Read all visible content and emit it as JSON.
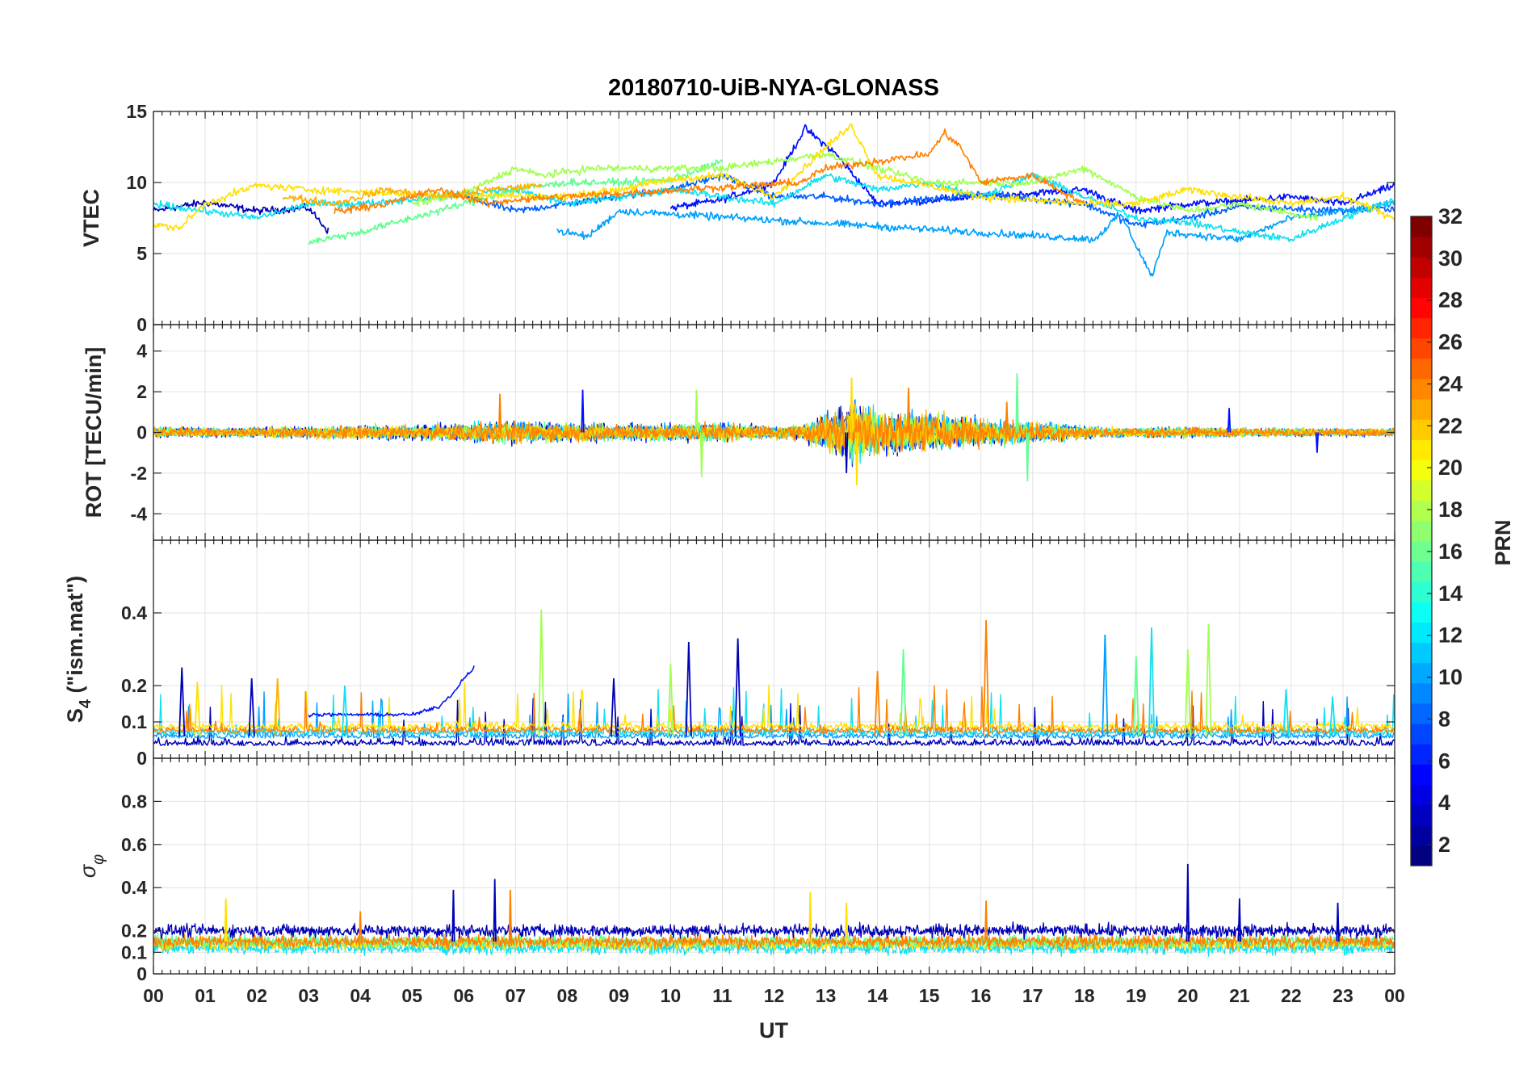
{
  "chart_data": {
    "type": "line",
    "title": "20180710-UiB-NYA-GLONASS",
    "xlabel": "UT",
    "x_tick_labels": [
      "00",
      "01",
      "02",
      "03",
      "04",
      "05",
      "06",
      "07",
      "08",
      "09",
      "10",
      "11",
      "12",
      "13",
      "14",
      "15",
      "16",
      "17",
      "18",
      "19",
      "20",
      "21",
      "22",
      "23",
      "00"
    ],
    "x_range_hours": [
      0,
      24
    ],
    "grid": true,
    "colorbar": {
      "label": "PRN",
      "colormap": "jet",
      "range": [
        1,
        32
      ],
      "ticks": [
        2,
        4,
        6,
        8,
        10,
        12,
        14,
        16,
        18,
        20,
        22,
        24,
        26,
        28,
        30,
        32
      ],
      "placement": "right"
    },
    "series_colors_by_prn": {
      "2": "#0000b8",
      "4": "#0010ff",
      "7": "#0060ff",
      "9": "#00a0ff",
      "12": "#10e0f0",
      "16": "#60ff90",
      "18": "#a0ff50",
      "20": "#ffe000",
      "22": "#ffb000",
      "24": "#ff8000"
    },
    "panels": [
      {
        "id": "vtec",
        "ylabel": "VTEC",
        "ylim": [
          0,
          15
        ],
        "yticks": [
          0,
          5,
          10,
          15
        ],
        "series": [
          {
            "prn": 2,
            "x": [
              0,
              1,
              2,
              3,
              3.4
            ],
            "y": [
              8.0,
              8.6,
              8.0,
              8.2,
              6.5
            ]
          },
          {
            "prn": 4,
            "x": [
              10,
              11,
              12,
              12.6,
              13.2,
              14,
              16,
              18,
              19,
              20,
              21,
              22,
              23,
              24
            ],
            "y": [
              8.2,
              8.8,
              10.0,
              13.8,
              12.0,
              8.5,
              9.0,
              9.5,
              8.0,
              8.5,
              8.7,
              9.0,
              8.5,
              9.8
            ]
          },
          {
            "prn": 7,
            "x": [
              6,
              7,
              9,
              10,
              11,
              12,
              13,
              14,
              15,
              16,
              18,
              19,
              20,
              21,
              23,
              24
            ],
            "y": [
              9.0,
              8.0,
              9.0,
              9.5,
              10.5,
              9.0,
              9.0,
              8.5,
              8.8,
              9.2,
              8.5,
              7.0,
              7.5,
              8.3,
              8.0,
              8.2
            ]
          },
          {
            "prn": 9,
            "x": [
              7.8,
              8.4,
              9,
              18.2,
              18.7,
              19.3,
              19.6,
              21,
              22,
              24
            ],
            "y": [
              6.6,
              6.2,
              8.0,
              6.0,
              7.8,
              3.4,
              6.5,
              6.0,
              7.5,
              8.5
            ]
          },
          {
            "prn": 12,
            "x": [
              0,
              1,
              2,
              3,
              4,
              5,
              6,
              7,
              8,
              9,
              10,
              11,
              12,
              13,
              14,
              15,
              16,
              17,
              18,
              19,
              20,
              21,
              22,
              23,
              24
            ],
            "y": [
              8.5,
              8.0,
              7.5,
              8.5,
              8.5,
              8.8,
              9.2,
              9.5,
              8.5,
              9.0,
              9.5,
              9.0,
              8.5,
              10.5,
              9.5,
              10.0,
              9.0,
              10.5,
              9.0,
              7.5,
              7.2,
              6.5,
              6.0,
              7.5,
              8.8
            ]
          },
          {
            "prn": 16,
            "x": [
              3,
              4,
              5,
              6,
              7,
              8,
              9,
              10,
              11
            ],
            "y": [
              5.8,
              6.5,
              7.5,
              8.5,
              9.5,
              10.0,
              10.0,
              10.2,
              11.5
            ]
          },
          {
            "prn": 18,
            "x": [
              5,
              6,
              7,
              7.5,
              8.5,
              11,
              13,
              15,
              17,
              18,
              19,
              20,
              21,
              22.5
            ],
            "y": [
              8.5,
              9.2,
              11.0,
              10.5,
              11.0,
              11.0,
              12.0,
              10.0,
              10.0,
              11.0,
              9.0,
              8.0,
              8.5,
              7.5
            ]
          },
          {
            "prn": 20,
            "x": [
              0,
              0.5,
              1,
              2,
              3,
              5,
              8,
              9,
              10,
              11,
              12,
              13,
              13.5,
              14,
              16,
              18,
              19,
              20,
              21,
              22,
              23,
              24
            ],
            "y": [
              7.0,
              6.8,
              8.5,
              9.8,
              9.5,
              9.2,
              9.0,
              9.5,
              10.2,
              10.5,
              9.0,
              12.5,
              14.0,
              10.5,
              9.0,
              8.5,
              8.5,
              9.5,
              9.0,
              8.5,
              9.0,
              7.5
            ]
          },
          {
            "prn": 22,
            "x": [
              2.5,
              3.5,
              4.5,
              5.5,
              6.5,
              7.5
            ],
            "y": [
              9.0,
              8.5,
              9.5,
              9.0,
              9.5,
              9.8
            ]
          },
          {
            "prn": 24,
            "x": [
              3.5,
              4.5,
              5.5,
              6.5,
              7,
              12.5,
              13,
              14,
              15,
              15.3,
              15.6,
              16,
              17,
              18
            ],
            "y": [
              8.0,
              8.5,
              9.5,
              8.5,
              8.8,
              10.0,
              11.0,
              11.5,
              12.0,
              13.5,
              12.5,
              10.0,
              10.5,
              8.5
            ]
          }
        ]
      },
      {
        "id": "rot",
        "ylabel": "ROT [TECU/min]",
        "ylim": [
          -5.3,
          5.3
        ],
        "yticks": [
          -4,
          -2,
          0,
          2,
          4
        ],
        "activity_profile": {
          "hours": [
            0,
            2,
            4,
            5,
            6,
            7,
            8,
            9,
            10,
            11,
            12,
            12.5,
            13,
            13.5,
            14,
            15,
            16,
            17,
            18,
            19,
            20,
            21,
            22,
            23,
            24
          ],
          "amplitude": [
            0.35,
            0.3,
            0.45,
            0.45,
            0.6,
            0.7,
            0.6,
            0.5,
            0.55,
            0.6,
            0.4,
            0.5,
            1.2,
            1.8,
            1.4,
            1.2,
            0.9,
            0.7,
            0.4,
            0.3,
            0.35,
            0.3,
            0.25,
            0.25,
            0.25
          ]
        },
        "spikes": [
          {
            "prn": 24,
            "x": 6.7,
            "y": 1.9
          },
          {
            "prn": 4,
            "x": 8.3,
            "y": 2.1
          },
          {
            "prn": 18,
            "x": 10.5,
            "y": 2.1
          },
          {
            "prn": 18,
            "x": 10.6,
            "y": -2.2
          },
          {
            "prn": 20,
            "x": 13.5,
            "y": 2.7
          },
          {
            "prn": 20,
            "x": 13.6,
            "y": -2.6
          },
          {
            "prn": 2,
            "x": 13.4,
            "y": -2.0
          },
          {
            "prn": 24,
            "x": 14.6,
            "y": 2.2
          },
          {
            "prn": 16,
            "x": 16.7,
            "y": 2.9
          },
          {
            "prn": 16,
            "x": 16.9,
            "y": -2.4
          },
          {
            "prn": 24,
            "x": 16.5,
            "y": 1.5
          },
          {
            "prn": 4,
            "x": 20.8,
            "y": 1.2
          },
          {
            "prn": 4,
            "x": 22.5,
            "y": -1.0
          }
        ]
      },
      {
        "id": "s4",
        "ylabel": "S4 (\"ism.mat\")",
        "ylabel_main": "S",
        "ylabel_sub": "4",
        "ylabel_rest": " (\"ism.mat\")",
        "ylim": [
          0,
          0.6
        ],
        "yticks": [
          0,
          0.1,
          0.2,
          0.4
        ],
        "baseline_series": [
          {
            "prn": 2,
            "level": 0.035
          },
          {
            "prn": 9,
            "level": 0.055
          },
          {
            "prn": 12,
            "level": 0.065
          },
          {
            "prn": 20,
            "level": 0.08
          },
          {
            "prn": 24,
            "level": 0.07
          }
        ],
        "series": [
          {
            "prn": 4,
            "x": [
              3.0,
              3.5,
              4.0,
              4.5,
              5.0,
              5.5,
              5.8,
              6.0,
              6.2
            ],
            "y": [
              0.12,
              0.12,
              0.12,
              0.12,
              0.12,
              0.14,
              0.18,
              0.22,
              0.25
            ]
          }
        ],
        "spikes": [
          {
            "prn": 2,
            "x": 0.55,
            "y": 0.25
          },
          {
            "prn": 20,
            "x": 0.85,
            "y": 0.21
          },
          {
            "prn": 2,
            "x": 1.9,
            "y": 0.22
          },
          {
            "prn": 22,
            "x": 2.4,
            "y": 0.22
          },
          {
            "prn": 12,
            "x": 3.7,
            "y": 0.2
          },
          {
            "prn": 18,
            "x": 7.5,
            "y": 0.41
          },
          {
            "prn": 2,
            "x": 8.9,
            "y": 0.22
          },
          {
            "prn": 2,
            "x": 10.35,
            "y": 0.32
          },
          {
            "prn": 2,
            "x": 11.3,
            "y": 0.33
          },
          {
            "prn": 18,
            "x": 10.0,
            "y": 0.26
          },
          {
            "prn": 16,
            "x": 14.5,
            "y": 0.3
          },
          {
            "prn": 24,
            "x": 16.1,
            "y": 0.38
          },
          {
            "prn": 24,
            "x": 14.0,
            "y": 0.24
          },
          {
            "prn": 9,
            "x": 18.4,
            "y": 0.34
          },
          {
            "prn": 12,
            "x": 19.3,
            "y": 0.36
          },
          {
            "prn": 18,
            "x": 20.4,
            "y": 0.37
          },
          {
            "prn": 16,
            "x": 19.0,
            "y": 0.28
          },
          {
            "prn": 18,
            "x": 20.0,
            "y": 0.3
          },
          {
            "prn": 12,
            "x": 21.9,
            "y": 0.19
          },
          {
            "prn": 12,
            "x": 22.8,
            "y": 0.17
          }
        ]
      },
      {
        "id": "sigma_phi",
        "ylabel": "σ φ",
        "ylabel_main": "σ",
        "ylabel_sub": "φ",
        "ylim": [
          0,
          1.0
        ],
        "yticks": [
          0,
          0.1,
          0.2,
          0.4,
          0.6,
          0.8
        ],
        "baseline_series": [
          {
            "prn": 12,
            "level": 0.12
          },
          {
            "prn": 20,
            "level": 0.14
          },
          {
            "prn": 16,
            "level": 0.15
          },
          {
            "prn": 24,
            "level": 0.15
          },
          {
            "prn": 2,
            "level": 0.2
          }
        ],
        "spikes": [
          {
            "prn": 20,
            "x": 1.4,
            "y": 0.35
          },
          {
            "prn": 24,
            "x": 4.0,
            "y": 0.29
          },
          {
            "prn": 2,
            "x": 5.8,
            "y": 0.39
          },
          {
            "prn": 2,
            "x": 6.6,
            "y": 0.44
          },
          {
            "prn": 24,
            "x": 6.9,
            "y": 0.39
          },
          {
            "prn": 20,
            "x": 12.7,
            "y": 0.38
          },
          {
            "prn": 20,
            "x": 13.4,
            "y": 0.33
          },
          {
            "prn": 24,
            "x": 16.1,
            "y": 0.34
          },
          {
            "prn": 2,
            "x": 20.0,
            "y": 0.51
          },
          {
            "prn": 2,
            "x": 21.0,
            "y": 0.35
          },
          {
            "prn": 2,
            "x": 22.9,
            "y": 0.33
          }
        ]
      }
    ]
  }
}
